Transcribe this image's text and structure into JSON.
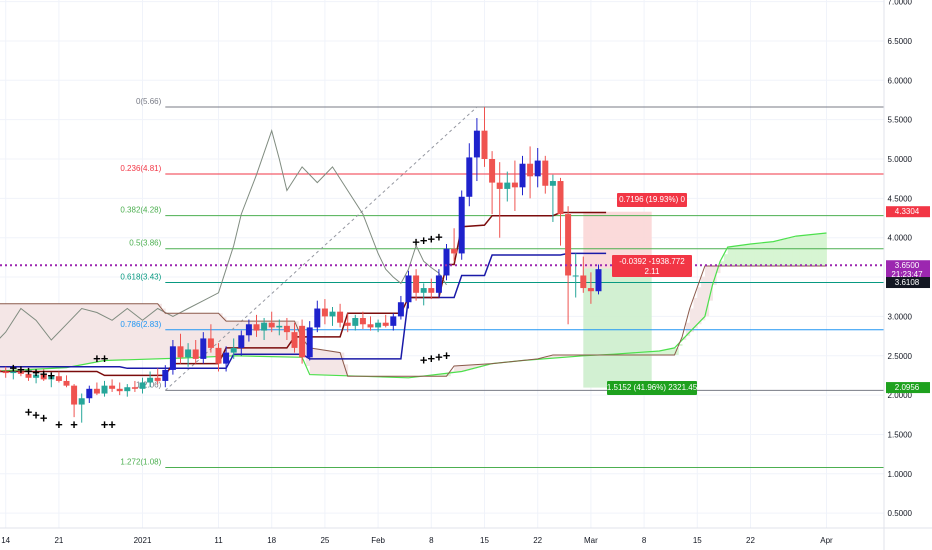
{
  "chart_data": {
    "type": "candlestick",
    "title": "",
    "y_axis": {
      "ticks": [
        "7.0000",
        "6.5000",
        "6.0000",
        "5.5000",
        "5.0000",
        "4.5000",
        "4.0000",
        "3.5000",
        "3.0000",
        "2.5000",
        "2.0000",
        "1.5000",
        "1.0000",
        "0.5000"
      ],
      "tick_values": [
        7.0,
        6.5,
        6.0,
        5.5,
        5.0,
        4.5,
        4.0,
        3.5,
        3.0,
        2.5,
        2.0,
        1.5,
        1.0,
        0.5
      ],
      "range": [
        0.0,
        7.0
      ]
    },
    "x_axis": {
      "ticks": [
        "14",
        "21",
        "2021",
        "11",
        "18",
        "25",
        "Feb",
        "8",
        "15",
        "22",
        "Mar",
        "8",
        "15",
        "22",
        "Apr"
      ],
      "tick_days": [
        -18,
        -11,
        0,
        10,
        17,
        24,
        31,
        38,
        45,
        52,
        59,
        66,
        73,
        80,
        90
      ],
      "range_days": [
        -20,
        95
      ]
    },
    "fib_levels": [
      {
        "label": "0(5.66)",
        "value": 5.66,
        "color": "#787b86"
      },
      {
        "label": "0.236(4.81)",
        "value": 4.81,
        "color": "#f23645"
      },
      {
        "label": "0.382(4.28)",
        "value": 4.28,
        "color": "#4caf50"
      },
      {
        "label": "0.5(3.86)",
        "value": 3.86,
        "color": "#4caf50"
      },
      {
        "label": "0.618(3.43)",
        "value": 3.43,
        "color": "#089981"
      },
      {
        "label": "0.786(2.83)",
        "value": 2.83,
        "color": "#2196f3"
      },
      {
        "label": "1(2.06)",
        "value": 2.06,
        "color": "#787b86"
      },
      {
        "label": "1.272(1.08)",
        "value": 1.08,
        "color": "#4caf50"
      }
    ],
    "candles": [
      {
        "d": -19,
        "o": 2.32,
        "h": 2.4,
        "l": 2.25,
        "c": 2.3
      },
      {
        "d": -18,
        "o": 2.3,
        "h": 2.36,
        "l": 2.22,
        "c": 2.28
      },
      {
        "d": -17,
        "o": 2.28,
        "h": 2.34,
        "l": 2.2,
        "c": 2.3
      },
      {
        "d": -16,
        "o": 2.3,
        "h": 2.35,
        "l": 2.24,
        "c": 2.27
      },
      {
        "d": -15,
        "o": 2.27,
        "h": 2.32,
        "l": 2.18,
        "c": 2.22
      },
      {
        "d": -14,
        "o": 2.22,
        "h": 2.3,
        "l": 2.15,
        "c": 2.26
      },
      {
        "d": -13,
        "o": 2.26,
        "h": 2.33,
        "l": 2.18,
        "c": 2.2
      },
      {
        "d": -12,
        "o": 2.2,
        "h": 2.28,
        "l": 2.1,
        "c": 2.24
      },
      {
        "d": -11,
        "o": 2.24,
        "h": 2.3,
        "l": 2.16,
        "c": 2.18
      },
      {
        "d": -10,
        "o": 2.18,
        "h": 2.25,
        "l": 2.1,
        "c": 2.12
      },
      {
        "d": -9,
        "o": 2.12,
        "h": 2.14,
        "l": 1.72,
        "c": 1.88
      },
      {
        "d": -8,
        "o": 1.88,
        "h": 2.02,
        "l": 1.65,
        "c": 1.96
      },
      {
        "d": -7,
        "o": 1.96,
        "h": 2.12,
        "l": 1.9,
        "c": 2.08
      },
      {
        "d": -6,
        "o": 2.08,
        "h": 2.16,
        "l": 2.0,
        "c": 2.02
      },
      {
        "d": -5,
        "o": 2.02,
        "h": 2.18,
        "l": 1.98,
        "c": 2.12
      },
      {
        "d": -4,
        "o": 2.12,
        "h": 2.2,
        "l": 2.04,
        "c": 2.08
      },
      {
        "d": -3,
        "o": 2.08,
        "h": 2.16,
        "l": 2.0,
        "c": 2.05
      },
      {
        "d": -2,
        "o": 2.05,
        "h": 2.14,
        "l": 1.98,
        "c": 2.1
      },
      {
        "d": -1,
        "o": 2.1,
        "h": 2.18,
        "l": 2.04,
        "c": 2.08
      },
      {
        "d": 0,
        "o": 2.08,
        "h": 2.22,
        "l": 2.02,
        "c": 2.16
      },
      {
        "d": 1,
        "o": 2.16,
        "h": 2.3,
        "l": 2.1,
        "c": 2.22
      },
      {
        "d": 2,
        "o": 2.22,
        "h": 2.34,
        "l": 2.14,
        "c": 2.18
      },
      {
        "d": 3,
        "o": 2.18,
        "h": 2.38,
        "l": 2.1,
        "c": 2.32
      },
      {
        "d": 4,
        "o": 2.32,
        "h": 2.7,
        "l": 2.26,
        "c": 2.62
      },
      {
        "d": 5,
        "o": 2.62,
        "h": 2.78,
        "l": 2.4,
        "c": 2.48
      },
      {
        "d": 6,
        "o": 2.48,
        "h": 2.66,
        "l": 2.36,
        "c": 2.58
      },
      {
        "d": 7,
        "o": 2.58,
        "h": 2.7,
        "l": 2.4,
        "c": 2.46
      },
      {
        "d": 8,
        "o": 2.46,
        "h": 2.8,
        "l": 2.4,
        "c": 2.72
      },
      {
        "d": 9,
        "o": 2.72,
        "h": 2.9,
        "l": 2.54,
        "c": 2.6
      },
      {
        "d": 10,
        "o": 2.6,
        "h": 2.66,
        "l": 2.3,
        "c": 2.4
      },
      {
        "d": 11,
        "o": 2.4,
        "h": 2.62,
        "l": 2.3,
        "c": 2.54
      },
      {
        "d": 12,
        "o": 2.54,
        "h": 2.72,
        "l": 2.46,
        "c": 2.6
      },
      {
        "d": 13,
        "o": 2.6,
        "h": 2.82,
        "l": 2.5,
        "c": 2.76
      },
      {
        "d": 14,
        "o": 2.76,
        "h": 2.96,
        "l": 2.68,
        "c": 2.9
      },
      {
        "d": 15,
        "o": 2.9,
        "h": 3.02,
        "l": 2.74,
        "c": 2.82
      },
      {
        "d": 16,
        "o": 2.82,
        "h": 2.98,
        "l": 2.7,
        "c": 2.92
      },
      {
        "d": 17,
        "o": 2.92,
        "h": 3.06,
        "l": 2.8,
        "c": 2.86
      },
      {
        "d": 18,
        "o": 2.86,
        "h": 2.96,
        "l": 2.76,
        "c": 2.88
      },
      {
        "d": 19,
        "o": 2.88,
        "h": 2.98,
        "l": 2.7,
        "c": 2.8
      },
      {
        "d": 20,
        "o": 2.8,
        "h": 2.92,
        "l": 2.54,
        "c": 2.6
      },
      {
        "d": 21,
        "o": 2.88,
        "h": 2.96,
        "l": 2.4,
        "c": 2.48
      },
      {
        "d": 22,
        "o": 2.48,
        "h": 2.94,
        "l": 2.44,
        "c": 2.86
      },
      {
        "d": 23,
        "o": 2.86,
        "h": 3.2,
        "l": 2.8,
        "c": 3.1
      },
      {
        "d": 24,
        "o": 3.1,
        "h": 3.22,
        "l": 2.9,
        "c": 3.0
      },
      {
        "d": 25,
        "o": 3.0,
        "h": 3.12,
        "l": 2.88,
        "c": 3.06
      },
      {
        "d": 26,
        "o": 3.06,
        "h": 3.16,
        "l": 2.86,
        "c": 2.92
      },
      {
        "d": 27,
        "o": 2.92,
        "h": 3.04,
        "l": 2.8,
        "c": 2.88
      },
      {
        "d": 28,
        "o": 2.88,
        "h": 3.02,
        "l": 2.82,
        "c": 2.98
      },
      {
        "d": 29,
        "o": 2.98,
        "h": 3.06,
        "l": 2.84,
        "c": 2.9
      },
      {
        "d": 30,
        "o": 2.9,
        "h": 3.0,
        "l": 2.82,
        "c": 2.86
      },
      {
        "d": 31,
        "o": 2.86,
        "h": 2.96,
        "l": 2.8,
        "c": 2.92
      },
      {
        "d": 32,
        "o": 2.92,
        "h": 3.02,
        "l": 2.86,
        "c": 2.88
      },
      {
        "d": 33,
        "o": 2.88,
        "h": 3.04,
        "l": 2.82,
        "c": 3.0
      },
      {
        "d": 34,
        "o": 3.0,
        "h": 3.26,
        "l": 2.96,
        "c": 3.18
      },
      {
        "d": 35,
        "o": 3.18,
        "h": 3.58,
        "l": 3.1,
        "c": 3.52
      },
      {
        "d": 36,
        "o": 3.52,
        "h": 3.6,
        "l": 3.2,
        "c": 3.3
      },
      {
        "d": 37,
        "o": 3.3,
        "h": 3.42,
        "l": 3.14,
        "c": 3.36
      },
      {
        "d": 38,
        "o": 3.36,
        "h": 3.48,
        "l": 3.22,
        "c": 3.3
      },
      {
        "d": 39,
        "o": 3.3,
        "h": 3.6,
        "l": 3.24,
        "c": 3.52
      },
      {
        "d": 40,
        "o": 3.52,
        "h": 3.92,
        "l": 3.46,
        "c": 3.86
      },
      {
        "d": 41,
        "o": 3.86,
        "h": 4.12,
        "l": 3.7,
        "c": 3.8
      },
      {
        "d": 42,
        "o": 3.8,
        "h": 4.6,
        "l": 3.72,
        "c": 4.52
      },
      {
        "d": 43,
        "o": 4.52,
        "h": 5.2,
        "l": 4.4,
        "c": 5.02
      },
      {
        "d": 44,
        "o": 5.02,
        "h": 5.52,
        "l": 4.72,
        "c": 5.36
      },
      {
        "d": 45,
        "o": 5.36,
        "h": 5.66,
        "l": 4.9,
        "c": 5.0
      },
      {
        "d": 46,
        "o": 5.0,
        "h": 5.1,
        "l": 4.3,
        "c": 4.7
      },
      {
        "d": 47,
        "o": 4.7,
        "h": 4.96,
        "l": 4.0,
        "c": 4.62
      },
      {
        "d": 48,
        "o": 4.62,
        "h": 4.84,
        "l": 4.46,
        "c": 4.7
      },
      {
        "d": 49,
        "o": 4.7,
        "h": 4.98,
        "l": 4.34,
        "c": 4.64
      },
      {
        "d": 50,
        "o": 4.64,
        "h": 5.04,
        "l": 4.54,
        "c": 4.94
      },
      {
        "d": 51,
        "o": 4.94,
        "h": 5.16,
        "l": 4.5,
        "c": 4.78
      },
      {
        "d": 52,
        "o": 4.78,
        "h": 5.14,
        "l": 4.64,
        "c": 4.98
      },
      {
        "d": 53,
        "o": 4.98,
        "h": 5.04,
        "l": 4.56,
        "c": 4.66
      },
      {
        "d": 54,
        "o": 4.66,
        "h": 4.8,
        "l": 4.2,
        "c": 4.72
      },
      {
        "d": 55,
        "o": 4.72,
        "h": 4.76,
        "l": 3.9,
        "c": 4.3
      },
      {
        "d": 56,
        "o": 4.3,
        "h": 4.4,
        "l": 2.9,
        "c": 3.52
      },
      {
        "d": 57,
        "o": 3.52,
        "h": 3.8,
        "l": 3.24,
        "c": 3.52
      },
      {
        "d": 58,
        "o": 3.52,
        "h": 3.76,
        "l": 3.3,
        "c": 3.36
      },
      {
        "d": 59,
        "o": 3.36,
        "h": 3.56,
        "l": 3.16,
        "c": 3.32
      },
      {
        "d": 60,
        "o": 3.32,
        "h": 3.66,
        "l": 3.28,
        "c": 3.6
      }
    ],
    "kijun": [
      [
        -20,
        2.36
      ],
      [
        -3,
        2.36
      ],
      [
        -2,
        2.34
      ],
      [
        11,
        2.34
      ],
      [
        12,
        2.52
      ],
      [
        21,
        2.52
      ],
      [
        22,
        2.46
      ],
      [
        34,
        2.46
      ],
      [
        35,
        3.24
      ],
      [
        41,
        3.24
      ],
      [
        42,
        3.52
      ],
      [
        45,
        3.52
      ],
      [
        46,
        3.78
      ],
      [
        55,
        3.78
      ],
      [
        56,
        3.8
      ],
      [
        61,
        3.8
      ]
    ],
    "tenkan": [
      [
        -20,
        2.3
      ],
      [
        -6,
        2.3
      ],
      [
        -5,
        2.25
      ],
      [
        3,
        2.25
      ],
      [
        4,
        2.4
      ],
      [
        10,
        2.4
      ],
      [
        11,
        2.6
      ],
      [
        19,
        2.6
      ],
      [
        20,
        2.74
      ],
      [
        26,
        2.74
      ],
      [
        27,
        3.04
      ],
      [
        34,
        3.04
      ],
      [
        35,
        3.24
      ],
      [
        39,
        3.24
      ],
      [
        40,
        3.66
      ],
      [
        41,
        3.66
      ],
      [
        42,
        4.14
      ],
      [
        45,
        4.16
      ],
      [
        46,
        4.28
      ],
      [
        54,
        4.28
      ],
      [
        55,
        4.32
      ],
      [
        61,
        4.32
      ]
    ],
    "chikou": [
      [
        -20,
        2.6
      ],
      [
        -18,
        2.8
      ],
      [
        -16,
        3.1
      ],
      [
        -14,
        2.95
      ],
      [
        -12,
        2.7
      ],
      [
        -10,
        2.9
      ],
      [
        -8,
        3.1
      ],
      [
        -6,
        3.05
      ],
      [
        -4,
        2.95
      ],
      [
        -2,
        3.1
      ],
      [
        0,
        2.95
      ],
      [
        2,
        3.1
      ],
      [
        4,
        3.0
      ],
      [
        6,
        3.1
      ],
      [
        8,
        3.2
      ],
      [
        10,
        3.3
      ],
      [
        11,
        3.6
      ],
      [
        12,
        3.9
      ],
      [
        13,
        4.3
      ],
      [
        15,
        4.8
      ],
      [
        17,
        5.36
      ],
      [
        18,
        5.0
      ],
      [
        19,
        4.6
      ],
      [
        21,
        4.9
      ],
      [
        23,
        4.7
      ],
      [
        25,
        4.9
      ],
      [
        27,
        4.6
      ],
      [
        29,
        4.3
      ],
      [
        31,
        3.8
      ],
      [
        32,
        3.6
      ],
      [
        33,
        3.5
      ],
      [
        34,
        3.42
      ],
      [
        35,
        3.6
      ],
      [
        36,
        3.9
      ],
      [
        37,
        3.7
      ],
      [
        38,
        3.62
      ],
      [
        39,
        3.55
      ],
      [
        40,
        3.4
      ]
    ],
    "span_a": [
      [
        -20,
        2.3
      ],
      [
        -10,
        2.35
      ],
      [
        -5,
        2.44
      ],
      [
        5,
        2.47
      ],
      [
        12,
        2.5
      ],
      [
        21,
        2.48
      ],
      [
        22,
        2.26
      ],
      [
        35,
        2.22
      ],
      [
        42,
        2.3
      ],
      [
        46,
        2.4
      ],
      [
        50,
        2.44
      ],
      [
        58,
        2.5
      ],
      [
        62,
        2.52
      ],
      [
        68,
        2.56
      ],
      [
        70,
        2.6
      ],
      [
        72,
        2.8
      ],
      [
        74,
        3.0
      ],
      [
        75,
        3.4
      ],
      [
        76,
        3.7
      ],
      [
        77,
        3.88
      ],
      [
        80,
        3.92
      ],
      [
        83,
        3.95
      ],
      [
        86,
        4.02
      ],
      [
        90,
        4.06
      ]
    ],
    "span_b": [
      [
        -20,
        3.16
      ],
      [
        2,
        3.16
      ],
      [
        3,
        3.04
      ],
      [
        10,
        3.04
      ],
      [
        11,
        2.94
      ],
      [
        20,
        2.94
      ],
      [
        21,
        2.72
      ],
      [
        22,
        2.6
      ],
      [
        26,
        2.54
      ],
      [
        27,
        2.24
      ],
      [
        40,
        2.24
      ],
      [
        41,
        2.37
      ],
      [
        46,
        2.4
      ],
      [
        52,
        2.46
      ],
      [
        54,
        2.51
      ],
      [
        70,
        2.51
      ],
      [
        71,
        2.74
      ],
      [
        72,
        3.1
      ],
      [
        74,
        3.64
      ],
      [
        90,
        3.64
      ]
    ],
    "plus_marks": [
      [
        -17,
        2.34
      ],
      [
        -16,
        2.32
      ],
      [
        -15,
        2.3
      ],
      [
        -14,
        2.28
      ],
      [
        -13,
        2.26
      ],
      [
        -12,
        2.24
      ],
      [
        -15,
        1.78
      ],
      [
        -14,
        1.74
      ],
      [
        -13,
        1.7
      ],
      [
        -11,
        1.62
      ],
      [
        -9,
        1.62
      ],
      [
        -5,
        1.62
      ],
      [
        -4,
        1.62
      ],
      [
        -6,
        2.46
      ],
      [
        -5,
        2.46
      ],
      [
        37,
        2.44
      ],
      [
        38,
        2.46
      ],
      [
        39,
        2.48
      ],
      [
        40,
        2.5
      ],
      [
        36,
        3.94
      ],
      [
        37,
        3.96
      ],
      [
        38,
        3.98
      ],
      [
        39,
        4.0
      ]
    ],
    "position": {
      "entry": 3.61,
      "target": 4.3304,
      "stop": 2.0956,
      "start_day": 58,
      "end_day": 67,
      "target_label": "0.7196 (19.93%) 0",
      "stop_label": "1.5152 (41.96%) 2321.45"
    },
    "trendline": [
      [
        3,
        2.06
      ],
      [
        44,
        5.66
      ]
    ],
    "current_price_line": 3.65,
    "price_labels": {
      "current_price": "3.6500",
      "countdown": "21:23:47",
      "entry": "3.6108",
      "target": "4.3304",
      "stop": "2.0956",
      "measure_line1": "-0.0392 -1938.772",
      "measure_line2": "2.11"
    },
    "colors": {
      "up_body": "#26a69a",
      "down_body": "#ef5350",
      "highlight_up": "#1e22cc",
      "kijun": "#7b0c0c",
      "tenkan": "#1a1aa8",
      "chikou": "#808c80",
      "span_a": "#4ce04c",
      "span_b": "#8b5a4b",
      "cloud_green": "#d7f5d3",
      "cloud_red": "#f4e6e6",
      "target_zone": "#fbd6d6",
      "stop_zone": "#cdeecd",
      "target_badge": "#f23645",
      "stop_badge": "#1ea11e",
      "current_price": "#9c27b0"
    }
  }
}
